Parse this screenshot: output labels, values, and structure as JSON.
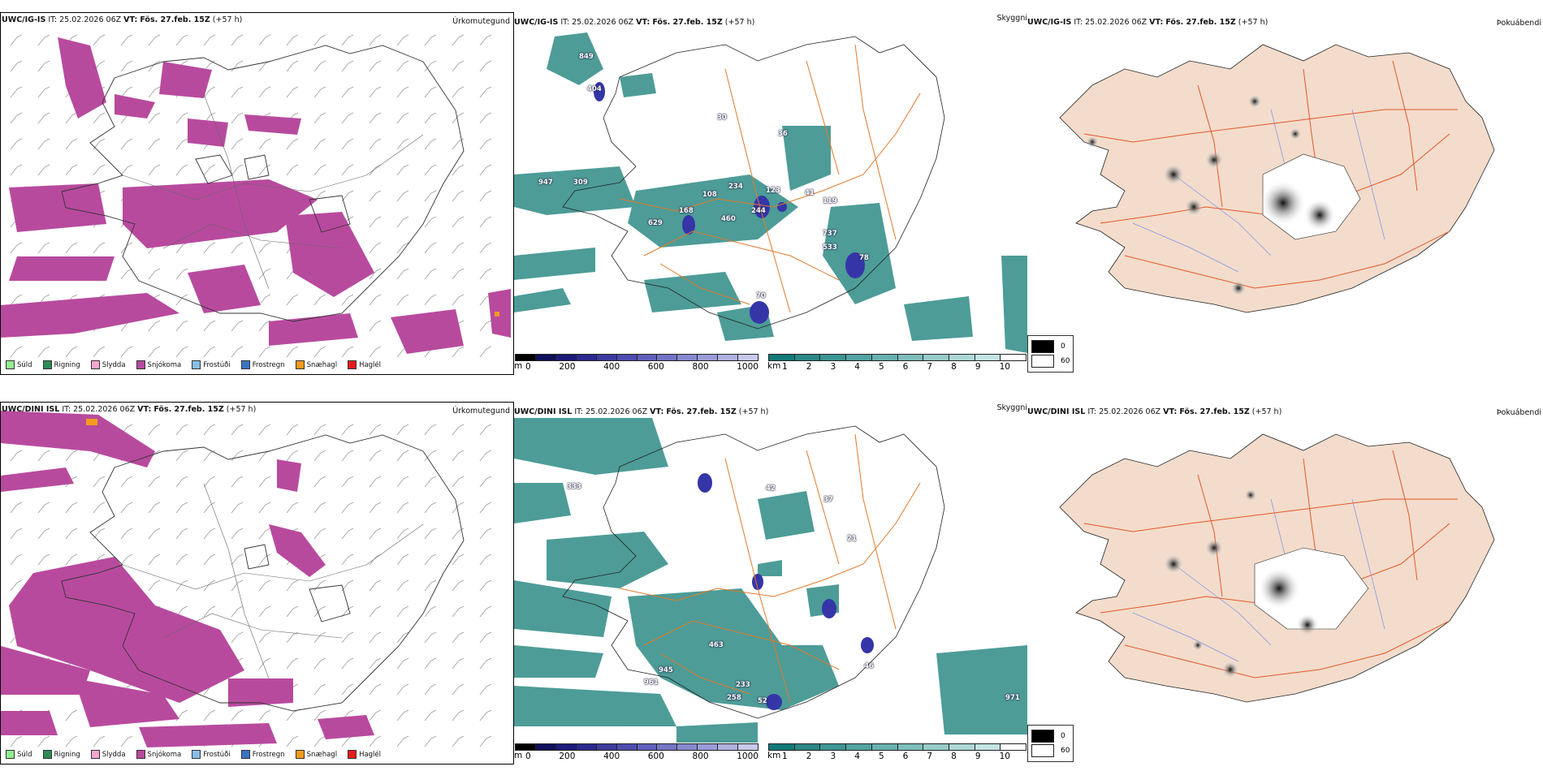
{
  "rows": [
    {
      "model": "UWC/IG-IS",
      "it_label": "IT:",
      "it_value": "25.02.2026 06Z",
      "vt_label": "VT:",
      "vt_value": "Fös. 27.feb. 15Z",
      "lead": "(+57 h)",
      "precip_title": "Úrkomutegund",
      "cloud_title": "Skyggni",
      "fog_title": "Þokuábendi",
      "height_labels": [
        "849",
        "404",
        "30",
        "36",
        "947",
        "309",
        "234",
        "108",
        "168",
        "460",
        "244",
        "123",
        "41",
        "119",
        "737",
        "533",
        "78",
        "70",
        "629"
      ]
    },
    {
      "model": "UWC/DINI ISL",
      "it_label": "IT:",
      "it_value": "25.02.2026 06Z",
      "vt_label": "VT:",
      "vt_value": "Fös. 27.feb. 15Z",
      "lead": "(+57 h)",
      "precip_title": "Úrkomutegund",
      "cloud_title": "Skyggni",
      "fog_title": "Þokuábendi",
      "height_labels": [
        "333",
        "42",
        "37",
        "21",
        "463",
        "945",
        "961",
        "233",
        "258",
        "52",
        "46",
        "971"
      ]
    }
  ],
  "precip_legend": [
    {
      "label": "Súld",
      "color": "#90ee90"
    },
    {
      "label": "Rigning",
      "color": "#2e8b57"
    },
    {
      "label": "Slydda",
      "color": "#f4a6d0"
    },
    {
      "label": "Snjókoma",
      "color": "#b84a9e"
    },
    {
      "label": "Frostúði",
      "color": "#87bde8"
    },
    {
      "label": "Frostregn",
      "color": "#3a75c4"
    },
    {
      "label": "Snæhagl",
      "color": "#f59a1c"
    },
    {
      "label": "Haglél",
      "color": "#e81c1c"
    }
  ],
  "height_bar": {
    "unit": "m",
    "ticks": [
      "0",
      "200",
      "400",
      "600",
      "800",
      "1000"
    ],
    "colors": [
      "#000000",
      "#0f0f5a",
      "#1b1b7a",
      "#2a2a8e",
      "#3c3c9e",
      "#4d4db0",
      "#6060bc",
      "#7474c6",
      "#8888d0",
      "#9b9bd8",
      "#b0b0e0",
      "#c8c8ea"
    ]
  },
  "vis_bar": {
    "unit": "km",
    "ticks": [
      "1",
      "2",
      "3",
      "4",
      "5",
      "6",
      "7",
      "8",
      "9",
      "10"
    ],
    "colors": [
      "#137a78",
      "#2a8886",
      "#3d9593",
      "#52a3a1",
      "#68b1ae",
      "#7fbebb",
      "#95cbc8",
      "#acd8d6",
      "#c3e5e3",
      "#ffffff"
    ]
  },
  "fog_legend": [
    {
      "label": "0",
      "color": "#000000"
    },
    {
      "label": "60",
      "color": "#ffffff"
    }
  ]
}
